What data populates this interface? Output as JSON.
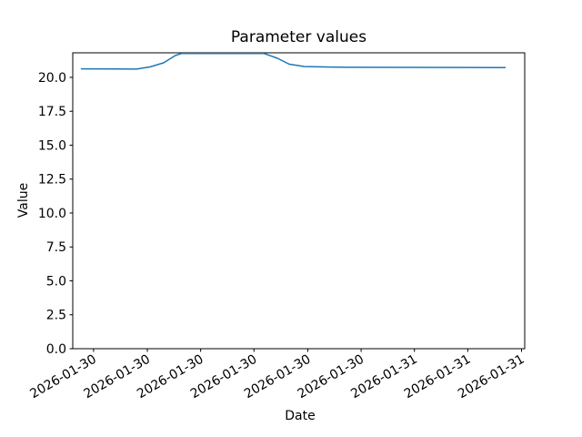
{
  "chart_data": {
    "type": "line",
    "title": "Parameter values",
    "xlabel": "Date",
    "ylabel": "Value",
    "grid": false,
    "legend": "none",
    "background_color": "#ffffff",
    "line_color": "#1f77b4",
    "axis_color": "#000000",
    "ylim": [
      0,
      21.81
    ],
    "yticks": {
      "values": [
        0.0,
        2.5,
        5.0,
        7.5,
        10.0,
        12.5,
        15.0,
        17.5,
        20.0
      ],
      "labels": [
        "0.0",
        "2.5",
        "5.0",
        "7.5",
        "10.0",
        "12.5",
        "15.0",
        "17.5",
        "20.0"
      ]
    },
    "xticks": {
      "labels": [
        "2026-01-30",
        "2026-01-30",
        "2026-01-30",
        "2026-01-30",
        "2026-01-30",
        "2026-01-30",
        "2026-01-31",
        "2026-01-31",
        "2026-01-31"
      ],
      "fracs": [
        0.046,
        0.165,
        0.283,
        0.401,
        0.52,
        0.638,
        0.756,
        0.874,
        0.993
      ],
      "rotation_deg": 30
    },
    "x_axis_note": "continuous date-time axis; point x given as fraction of plot width",
    "series": [
      {
        "name": "parameter-values-line",
        "points": [
          [
            0.018,
            20.63
          ],
          [
            0.141,
            20.61
          ],
          [
            0.171,
            20.77
          ],
          [
            0.201,
            21.07
          ],
          [
            0.227,
            21.61
          ],
          [
            0.241,
            21.76
          ],
          [
            0.423,
            21.76
          ],
          [
            0.453,
            21.41
          ],
          [
            0.479,
            20.97
          ],
          [
            0.513,
            20.8
          ],
          [
            0.584,
            20.75
          ],
          [
            0.958,
            20.72
          ]
        ]
      }
    ]
  }
}
